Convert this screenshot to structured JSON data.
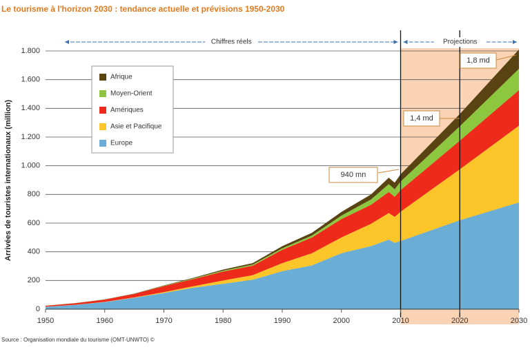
{
  "chart_data": {
    "type": "stacked-area",
    "title": "Le tourisme à l'horizon 2030 : tendance actuelle et prévisions 1950-2030",
    "y_label": "Arrivées de touristes internationaux (million)",
    "source": "Source : Organisation mondiale du tourisme (OMT-UNWTO) ©",
    "x": [
      1950,
      1955,
      1960,
      1965,
      1970,
      1975,
      1980,
      1985,
      1990,
      1995,
      2000,
      2005,
      2008,
      2009,
      2010,
      2020,
      2030
    ],
    "series": [
      {
        "name": "Europe",
        "color": "#6aaed6",
        "values": [
          17,
          30,
          50,
          80,
          113,
          150,
          177,
          205,
          265,
          305,
          390,
          440,
          485,
          462,
          475,
          620,
          744
        ]
      },
      {
        "name": "Asie et Pacifique",
        "color": "#fcc52a",
        "values": [
          0.2,
          0.5,
          1,
          2,
          6,
          10,
          23,
          32,
          56,
          85,
          110,
          155,
          185,
          181,
          205,
          355,
          535
        ]
      },
      {
        "name": "Amériques",
        "color": "#ee2a1b",
        "values": [
          7,
          11,
          16,
          24,
          42,
          50,
          62,
          66,
          93,
          109,
          128,
          133,
          147,
          140,
          150,
          199,
          248
        ]
      },
      {
        "name": "Moyen-Orient",
        "color": "#8dc63f",
        "values": [
          0.2,
          0.4,
          0.6,
          1,
          2,
          5,
          7,
          8,
          10,
          14,
          24,
          37,
          55,
          53,
          60,
          101,
          149
        ]
      },
      {
        "name": "Afrique",
        "color": "#5a4313",
        "values": [
          0.5,
          0.6,
          0.8,
          1.5,
          2.4,
          4,
          7,
          10,
          15,
          19,
          26,
          35,
          45,
          46,
          50,
          85,
          134
        ]
      }
    ],
    "xlim": [
      1950,
      2030
    ],
    "xticks": [
      1950,
      1960,
      1970,
      1980,
      1990,
      2000,
      2010,
      2020,
      2030
    ],
    "ylim": [
      0,
      1800
    ],
    "yticks": [
      0,
      200,
      400,
      600,
      800,
      {
        "value": 1000,
        "label": "1.000"
      },
      {
        "value": 1200,
        "label": "1.200"
      },
      {
        "value": 1400,
        "label": "1.400"
      },
      {
        "value": 1600,
        "label": "1.600"
      },
      {
        "value": 1800,
        "label": "1.800"
      }
    ],
    "grid": true,
    "markers": [
      2010,
      2020
    ],
    "periods": [
      "Chiffres réels",
      "Projections"
    ],
    "callouts": [
      "940 mn",
      "1,4 md",
      "1,8 md"
    ]
  }
}
